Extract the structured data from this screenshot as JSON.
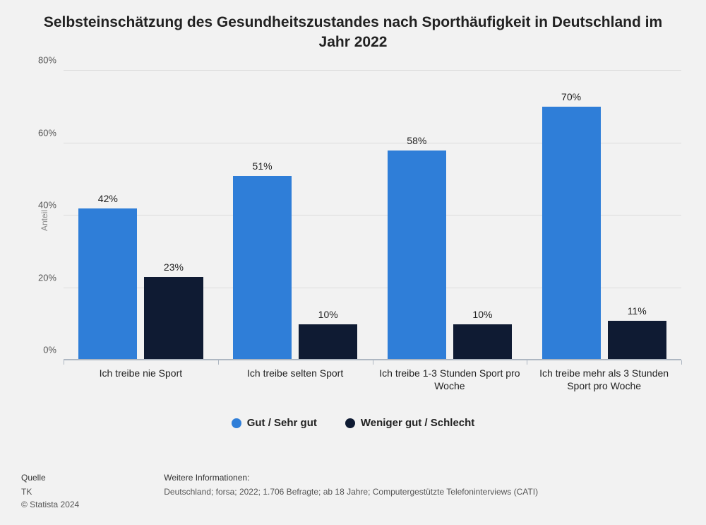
{
  "title": "Selbsteinschätzung des Gesundheitszustandes nach Sporthäufigkeit in Deutschland im Jahr 2022",
  "chart": {
    "type": "grouped-bar",
    "background_color": "#f2f2f2",
    "grid_color": "#dcdcdc",
    "baseline_color": "#aeb7c2",
    "ylabel": "Anteil",
    "ylabel_color": "#888888",
    "ylim_max": 80,
    "ytick_step": 20,
    "ytick_suffix": "%",
    "value_suffix": "%",
    "bar_width_pct": 38,
    "categories": [
      "Ich treibe nie Sport",
      "Ich treibe selten Sport",
      "Ich treibe 1-3 Stunden Sport pro Woche",
      "Ich treibe mehr als 3 Stunden Sport pro Woche"
    ],
    "series": [
      {
        "name": "Gut / Sehr gut",
        "color": "#2f7ed8",
        "values": [
          42,
          51,
          58,
          70
        ]
      },
      {
        "name": "Weniger gut / Schlecht",
        "color": "#0f1b33",
        "values": [
          23,
          10,
          10,
          11
        ]
      }
    ]
  },
  "legend_font_weight": 600,
  "footer": {
    "source_heading": "Quelle",
    "source_name": "TK",
    "copyright": "© Statista 2024",
    "info_heading": "Weitere Informationen:",
    "info_text": "Deutschland; forsa; 2022; 1.706 Befragte; ab 18 Jahre; Computergestützte Telefoninterviews (CATI)"
  }
}
